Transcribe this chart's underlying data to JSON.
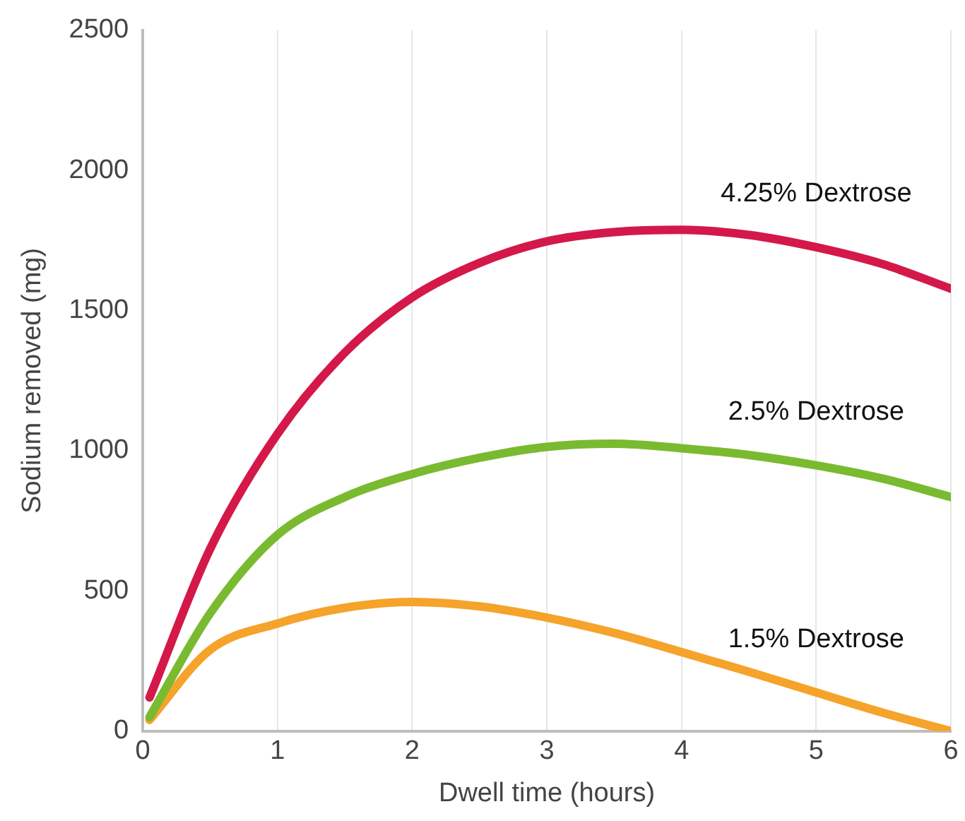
{
  "chart_data": {
    "type": "line",
    "xlabel": "Dwell time (hours)",
    "ylabel": "Sodium removed (mg)",
    "xlim": [
      0,
      6
    ],
    "xticks": [
      0,
      1,
      2,
      3,
      4,
      5,
      6
    ],
    "ylim": [
      0,
      2500
    ],
    "yticks": [
      0,
      500,
      1000,
      1500,
      2000,
      2500
    ],
    "grid": "x",
    "legend": false,
    "marker": "none",
    "line_style": "solid",
    "series": [
      {
        "name": "4.25% Dextrose",
        "color": "#d4184a",
        "x": [
          0.05,
          0.5,
          1,
          1.5,
          2,
          2.5,
          3,
          3.5,
          4,
          4.5,
          5,
          5.5,
          6
        ],
        "values": [
          120,
          650,
          1060,
          1350,
          1547,
          1670,
          1747,
          1780,
          1788,
          1770,
          1726,
          1665,
          1578
        ]
      },
      {
        "name": "2.5% Dextrose",
        "color": "#7aba30",
        "x": [
          0.05,
          0.5,
          1,
          1.5,
          2,
          2.5,
          3,
          3.5,
          4,
          4.5,
          5,
          5.5,
          6
        ],
        "values": [
          50,
          420,
          700,
          835,
          917,
          975,
          1014,
          1025,
          1009,
          985,
          948,
          900,
          835
        ]
      },
      {
        "name": "1.5% Dextrose",
        "color": "#f5a32a",
        "x": [
          0.05,
          0.5,
          1,
          1.5,
          2,
          2.5,
          3,
          3.5,
          4,
          4.5,
          5,
          5.5,
          6
        ],
        "values": [
          40,
          290,
          384,
          440,
          461,
          445,
          405,
          350,
          282,
          212,
          138,
          65,
          0
        ]
      }
    ]
  }
}
